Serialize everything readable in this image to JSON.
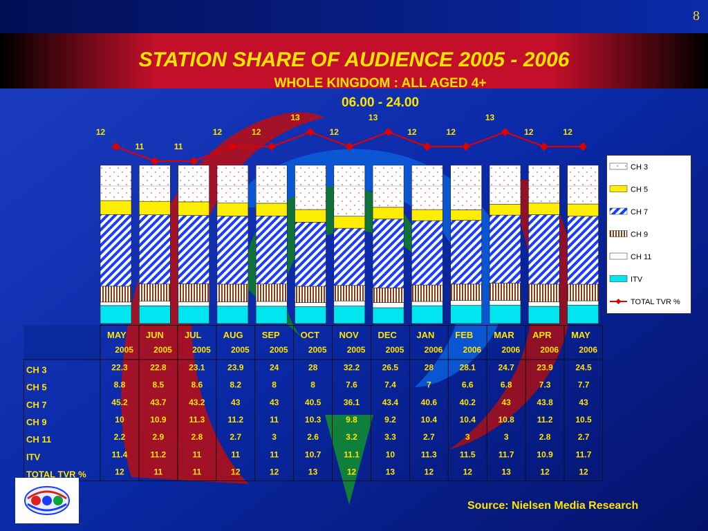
{
  "page_number": "8",
  "title": "STATION SHARE OF AUDIENCE 2005 - 2006",
  "subtitle": "WHOLE KINGDOM : ALL AGED 4+",
  "time_band": "06.00 - 24.00",
  "source": "Source: Nielsen Media Research",
  "colors": {
    "background": "#0b2a9e",
    "banner": "#c8102e",
    "title": "#ffe400",
    "ch5": "#ffee00",
    "ch7": "#1a3cff",
    "ch9": "#8b4513",
    "itv": "#00e5f0",
    "tvr_line": "#e00000"
  },
  "chart_data": {
    "type": "bar",
    "stacked": true,
    "categories": [
      {
        "month": "MAY",
        "year": "2005"
      },
      {
        "month": "JUN",
        "year": "2005"
      },
      {
        "month": "JUL",
        "year": "2005"
      },
      {
        "month": "AUG",
        "year": "2005"
      },
      {
        "month": "SEP",
        "year": "2005"
      },
      {
        "month": "OCT",
        "year": "2005"
      },
      {
        "month": "NOV",
        "year": "2005"
      },
      {
        "month": "DEC",
        "year": "2005"
      },
      {
        "month": "JAN",
        "year": "2006"
      },
      {
        "month": "FEB",
        "year": "2006"
      },
      {
        "month": "MAR",
        "year": "2006"
      },
      {
        "month": "APR",
        "year": "2006"
      },
      {
        "month": "MAY",
        "year": "2006"
      }
    ],
    "series": [
      {
        "name": "CH 3",
        "values": [
          22.3,
          22.8,
          23.1,
          23.9,
          24,
          28,
          32.2,
          26.5,
          28,
          28.1,
          24.7,
          23.9,
          24.5
        ]
      },
      {
        "name": "CH 5",
        "values": [
          8.8,
          8.5,
          8.6,
          8.2,
          8,
          8,
          7.6,
          7.4,
          7,
          6.6,
          6.8,
          7.3,
          7.7
        ]
      },
      {
        "name": "CH 7",
        "values": [
          45.2,
          43.7,
          43.2,
          43,
          43,
          40.5,
          36.1,
          43.4,
          40.6,
          40.2,
          43,
          43.8,
          43
        ]
      },
      {
        "name": "CH 9",
        "values": [
          10,
          10.9,
          11.3,
          11.2,
          11,
          10.3,
          9.8,
          9.2,
          10.4,
          10.4,
          10.8,
          11.2,
          10.5
        ]
      },
      {
        "name": "CH 11",
        "values": [
          2.2,
          2.9,
          2.8,
          2.7,
          3,
          2.6,
          3.2,
          3.3,
          2.7,
          3,
          3,
          2.8,
          2.7
        ]
      },
      {
        "name": "ITV",
        "values": [
          11.4,
          11.2,
          11,
          11,
          11,
          10.7,
          11.1,
          10,
          11.3,
          11.5,
          11.7,
          10.9,
          11.7
        ]
      }
    ],
    "line_series": {
      "name": "TOTAL TVR %",
      "values": [
        12,
        11,
        11,
        12,
        12,
        13,
        12,
        13,
        12,
        12,
        13,
        12,
        12
      ]
    },
    "legend_position": "right"
  }
}
